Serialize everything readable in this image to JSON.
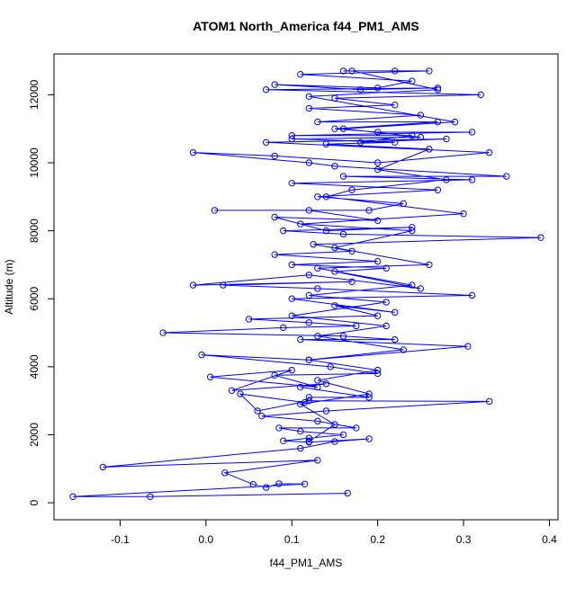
{
  "chart_data": {
    "type": "line",
    "title": "ATOM1 North_America f44_PM1_AMS",
    "x_label": "f44_PM1_AMS",
    "y_label": "Altitude (m)",
    "markers": "open-circle",
    "box": true,
    "xlim": [
      -0.177,
      0.41
    ],
    "ylim": [
      -500,
      13200
    ],
    "xticks": [
      -0.1,
      {
        "value": 0,
        "label": "0.0"
      },
      0.1,
      0.2,
      0.3,
      0.4
    ],
    "yticks": [
      0,
      2000,
      4000,
      6000,
      8000,
      10000,
      12000
    ],
    "x": [
      0.165,
      -0.065,
      -0.155,
      0.115,
      0.085,
      0.07,
      0.055,
      0.022,
      0.13,
      -0.12,
      0.11,
      0.15,
      0.19,
      0.12,
      0.09,
      0.12,
      0.16,
      0.11,
      0.085,
      0.175,
      0.13,
      0.065,
      0.14,
      0.33,
      0.12,
      0.06,
      0.04,
      0.115,
      0.12,
      0.19,
      0.11,
      0.14,
      0.03,
      0.1,
      0.005,
      0.13,
      0.08,
      0.2,
      0.145,
      -0.005,
      0.12,
      0.305,
      0.11,
      0.22,
      0.16,
      -0.05,
      0.09,
      0.175,
      0.12,
      0.05,
      0.2,
      0.15,
      0.22,
      0.1,
      0.31,
      0.13,
      0.02,
      0.17,
      -0.015,
      0.12,
      0.25,
      0.15,
      0.21,
      0.1,
      0.2,
      0.08,
      0.17,
      0.125,
      0.39,
      0.16,
      0.09,
      0.24,
      0.14,
      0.08,
      0.2,
      0.12,
      0.01,
      0.19,
      0.23,
      0.13,
      0.27,
      0.1,
      0.31,
      0.16,
      0.35,
      0.15,
      0.12,
      -0.015,
      0.08,
      0.2,
      0.33,
      0.07,
      0.28,
      0.18,
      0.24,
      0.1,
      0.31,
      0.2,
      0.15,
      0.27,
      0.13,
      0.25,
      0.12,
      0.22,
      0.15,
      0.32,
      0.07,
      0.27,
      0.18,
      0.08,
      0.2,
      0.24,
      0.11,
      0.26,
      0.16,
      0.22,
      0.17,
      0.27,
      0.12,
      0.29,
      0.16,
      0.25,
      0.1,
      0.22,
      0.14,
      0.26,
      0.2,
      0.28,
      0.17,
      0.14,
      0.3,
      0.11,
      0.24,
      0.15,
      0.26,
      0.13,
      0.24,
      0.12,
      0.21,
      0.1,
      0.21,
      0.13,
      0.23,
      0.12,
      0.2,
      0.13,
      0.19,
      0.11,
      0.15,
      0.12
    ],
    "series": [
      {
        "color": "#0000ff",
        "values": [
          280,
          180,
          180,
          550,
          560,
          450,
          540,
          880,
          1250,
          1050,
          1600,
          1800,
          1880,
          1780,
          1820,
          1900,
          2000,
          2100,
          2200,
          2200,
          2400,
          2550,
          2700,
          2980,
          3000,
          2700,
          3200,
          2950,
          3100,
          3100,
          3400,
          3500,
          3300,
          3900,
          3700,
          3400,
          3750,
          3800,
          4000,
          4350,
          4200,
          4600,
          4800,
          4800,
          4900,
          5000,
          5150,
          5200,
          5300,
          5400,
          5500,
          5800,
          5600,
          6000,
          6100,
          6300,
          6400,
          6500,
          6400,
          6700,
          6300,
          6800,
          6900,
          7000,
          7100,
          7300,
          7400,
          7600,
          7800,
          7900,
          8000,
          8100,
          8000,
          8400,
          8300,
          8600,
          8600,
          8600,
          8800,
          9000,
          9200,
          9400,
          9500,
          9600,
          9600,
          9900,
          10000,
          10300,
          10200,
          10000,
          10300,
          10600,
          10700,
          10600,
          10800,
          10800,
          10900,
          10900,
          11000,
          11200,
          11200,
          11400,
          11600,
          11700,
          11900,
          12000,
          12150,
          12200,
          12150,
          12300,
          12200,
          12400,
          12600,
          12700,
          12700,
          12700,
          12700,
          12150,
          11950,
          11200,
          11000,
          10750,
          10700,
          10600,
          10550,
          10400,
          9800,
          9500,
          9200,
          9000,
          8500,
          8200,
          8000,
          7500,
          7000,
          6900,
          6400,
          6100,
          5900,
          5500,
          5200,
          4900,
          4500,
          4200,
          3900,
          3600,
          3200,
          2900,
          2300,
          1800
        ]
      }
    ]
  }
}
